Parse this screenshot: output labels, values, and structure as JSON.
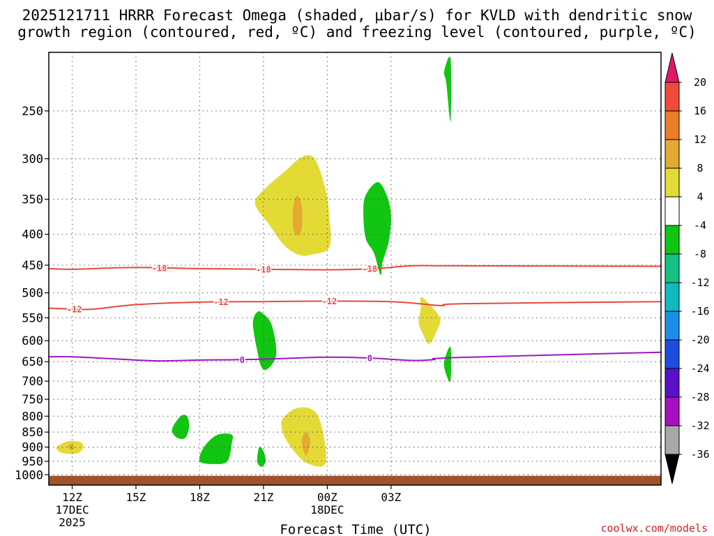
{
  "chart_data": {
    "type": "contour",
    "title_line1": "2025121711 HRRR Forecast Omega (shaded, μbar/s) for KVLD with dendritic snow",
    "title_line2": "growth region (contoured, red, ºC) and freezing level (contoured, purple, ºC)",
    "xlabel": "Forecast Time (UTC)",
    "credit": "coolwx.com/models",
    "x_range_hours": [
      10.9,
      39.7
    ],
    "x_ticks": [
      {
        "hour": 12,
        "label": "12Z",
        "sub1": "17DEC",
        "sub2": "2025"
      },
      {
        "hour": 15,
        "label": "15Z",
        "sub1": "",
        "sub2": ""
      },
      {
        "hour": 18,
        "label": "18Z",
        "sub1": "",
        "sub2": ""
      },
      {
        "hour": 21,
        "label": "21Z",
        "sub1": "",
        "sub2": ""
      },
      {
        "hour": 24,
        "label": "00Z",
        "sub1": "18DEC",
        "sub2": ""
      },
      {
        "hour": 27,
        "label": "03Z",
        "sub1": "",
        "sub2": ""
      }
    ],
    "y_range_hpa": [
      200,
      1040
    ],
    "y_ticks": [
      250,
      300,
      350,
      400,
      450,
      500,
      550,
      600,
      650,
      700,
      750,
      800,
      850,
      900,
      950,
      1000
    ],
    "colorbar": {
      "levels": [
        20,
        16,
        12,
        8,
        4,
        -4,
        -8,
        -12,
        -16,
        -20,
        -24,
        -28,
        -32,
        -36
      ],
      "colors": [
        "#e8184a",
        "#f04a3a",
        "#ec7d28",
        "#e3aa30",
        "#e4da36",
        "#ffffff",
        "#11c611",
        "#13c283",
        "#0fb9c0",
        "#1b8fe8",
        "#1f4ce0",
        "#5a10c8",
        "#a80fc0",
        "#a8a8a8"
      ],
      "top_arrow_color": "#e0186a",
      "bottom_arrow_color": "#000000"
    },
    "contours": [
      {
        "name": "dgz-minus18",
        "color": "#e8483a",
        "label": "-18",
        "points": [
          [
            10.9,
            456
          ],
          [
            12,
            457
          ],
          [
            15,
            454
          ],
          [
            18,
            456
          ],
          [
            21,
            457
          ],
          [
            24,
            458
          ],
          [
            26.2,
            456
          ],
          [
            28,
            451
          ],
          [
            30,
            451
          ],
          [
            39.7,
            452
          ]
        ],
        "label_hours": [
          16.1,
          21.0,
          26.0
        ]
      },
      {
        "name": "dgz-minus12",
        "color": "#e8483a",
        "label": "-12",
        "points": [
          [
            10.9,
            530
          ],
          [
            12,
            532
          ],
          [
            13,
            532
          ],
          [
            15,
            523
          ],
          [
            18,
            518
          ],
          [
            21,
            517
          ],
          [
            24,
            516
          ],
          [
            27,
            517
          ],
          [
            28.3,
            521
          ],
          [
            29.4,
            525
          ],
          [
            30.5,
            521
          ],
          [
            39.7,
            517
          ]
        ],
        "label_hours": [
          12.1,
          19.0,
          24.1
        ]
      },
      {
        "name": "freezing-level-0",
        "color": "#9b16c4",
        "label": "0",
        "points": [
          [
            10.9,
            638
          ],
          [
            12,
            638
          ],
          [
            14,
            643
          ],
          [
            16,
            648
          ],
          [
            18,
            646
          ],
          [
            20,
            645
          ],
          [
            22,
            642
          ],
          [
            24,
            639
          ],
          [
            26,
            641
          ],
          [
            28,
            647
          ],
          [
            29,
            645
          ],
          [
            30,
            640
          ],
          [
            39.7,
            627
          ]
        ],
        "label_hours": [
          20.0,
          26.0
        ]
      }
    ],
    "shaded_regions": [
      {
        "name": "yellow-upper",
        "color": "#e4da36",
        "omega": 6,
        "points": [
          [
            20.6,
            355
          ],
          [
            21.2,
            333
          ],
          [
            22.0,
            315
          ],
          [
            22.8,
            298
          ],
          [
            23.4,
            300
          ],
          [
            23.9,
            335
          ],
          [
            24.1,
            375
          ],
          [
            24.1,
            420
          ],
          [
            23.3,
            432
          ],
          [
            22.7,
            433
          ],
          [
            22.0,
            418
          ],
          [
            21.3,
            387
          ]
        ]
      },
      {
        "name": "orange-upper",
        "color": "#e3aa30",
        "omega": 10,
        "points": [
          [
            22.6,
            345
          ],
          [
            22.8,
            360
          ],
          [
            22.8,
            390
          ],
          [
            22.6,
            402
          ],
          [
            22.4,
            390
          ],
          [
            22.4,
            360
          ]
        ]
      },
      {
        "name": "green-upper",
        "color": "#11c611",
        "omega": -6,
        "points": [
          [
            26.4,
            328
          ],
          [
            26.8,
            345
          ],
          [
            27.0,
            372
          ],
          [
            26.9,
            410
          ],
          [
            26.6,
            445
          ],
          [
            26.5,
            467
          ],
          [
            26.2,
            430
          ],
          [
            25.8,
            405
          ],
          [
            25.7,
            360
          ],
          [
            25.9,
            340
          ]
        ]
      },
      {
        "name": "green-top-right",
        "color": "#11c611",
        "omega": -6,
        "points": [
          [
            29.8,
            205
          ],
          [
            29.8,
            260
          ],
          [
            29.6,
            225
          ],
          [
            29.5,
            215
          ]
        ]
      },
      {
        "name": "green-mid",
        "color": "#11c611",
        "omega": -6,
        "points": [
          [
            21.0,
            542
          ],
          [
            21.4,
            567
          ],
          [
            21.6,
            632
          ],
          [
            21.2,
            668
          ],
          [
            20.9,
            663
          ],
          [
            20.7,
            622
          ],
          [
            20.5,
            562
          ],
          [
            20.7,
            538
          ]
        ]
      },
      {
        "name": "yellow-mid-right",
        "color": "#e4da36",
        "omega": 6,
        "points": [
          [
            28.4,
            508
          ],
          [
            28.8,
            522
          ],
          [
            29.3,
            550
          ],
          [
            29.2,
            573
          ],
          [
            28.8,
            607
          ],
          [
            28.5,
            585
          ],
          [
            28.3,
            560
          ],
          [
            28.4,
            530
          ]
        ]
      },
      {
        "name": "green-right-edge",
        "color": "#11c611",
        "omega": -6,
        "points": [
          [
            29.8,
            615
          ],
          [
            29.8,
            698
          ],
          [
            29.6,
            683
          ],
          [
            29.5,
            650
          ]
        ]
      },
      {
        "name": "yellow-low-left",
        "color": "#e4da36",
        "omega": 6,
        "points": [
          [
            11.3,
            897
          ],
          [
            11.8,
            880
          ],
          [
            12.4,
            883
          ],
          [
            12.5,
            905
          ],
          [
            12.2,
            922
          ],
          [
            11.6,
            922
          ],
          [
            11.3,
            910
          ]
        ]
      },
      {
        "name": "orange-low-left",
        "color": "#e3aa30",
        "omega": 10,
        "points": [
          [
            11.8,
            898
          ],
          [
            11.95,
            890
          ],
          [
            12.1,
            900
          ],
          [
            11.95,
            910
          ]
        ]
      },
      {
        "name": "green-low-1",
        "color": "#11c611",
        "omega": -6,
        "points": [
          [
            16.7,
            840
          ],
          [
            17.1,
            800
          ],
          [
            17.4,
            800
          ],
          [
            17.5,
            835
          ],
          [
            17.3,
            870
          ],
          [
            16.9,
            867
          ]
        ]
      },
      {
        "name": "green-low-2",
        "color": "#11c611",
        "omega": -6,
        "points": [
          [
            18.2,
            900
          ],
          [
            18.8,
            860
          ],
          [
            19.5,
            858
          ],
          [
            19.5,
            890
          ],
          [
            19.3,
            950
          ],
          [
            18.7,
            960
          ],
          [
            18.0,
            950
          ]
        ]
      },
      {
        "name": "green-low-3",
        "color": "#11c611",
        "omega": -6,
        "points": [
          [
            20.8,
            900
          ],
          [
            21.0,
            915
          ],
          [
            21.1,
            950
          ],
          [
            20.9,
            970
          ],
          [
            20.7,
            950
          ]
        ]
      },
      {
        "name": "yellow-low-right",
        "color": "#e4da36",
        "omega": 6,
        "points": [
          [
            21.9,
            808
          ],
          [
            22.6,
            775
          ],
          [
            23.4,
            785
          ],
          [
            23.8,
            850
          ],
          [
            23.9,
            960
          ],
          [
            23.0,
            955
          ],
          [
            22.3,
            900
          ],
          [
            21.9,
            850
          ]
        ]
      },
      {
        "name": "orange-low-right",
        "color": "#e3aa30",
        "omega": 10,
        "points": [
          [
            23.0,
            850
          ],
          [
            23.2,
            880
          ],
          [
            23.0,
            930
          ],
          [
            22.8,
            880
          ]
        ]
      }
    ],
    "ground_color": "#a0522d",
    "ground_top_hpa": 1004
  }
}
